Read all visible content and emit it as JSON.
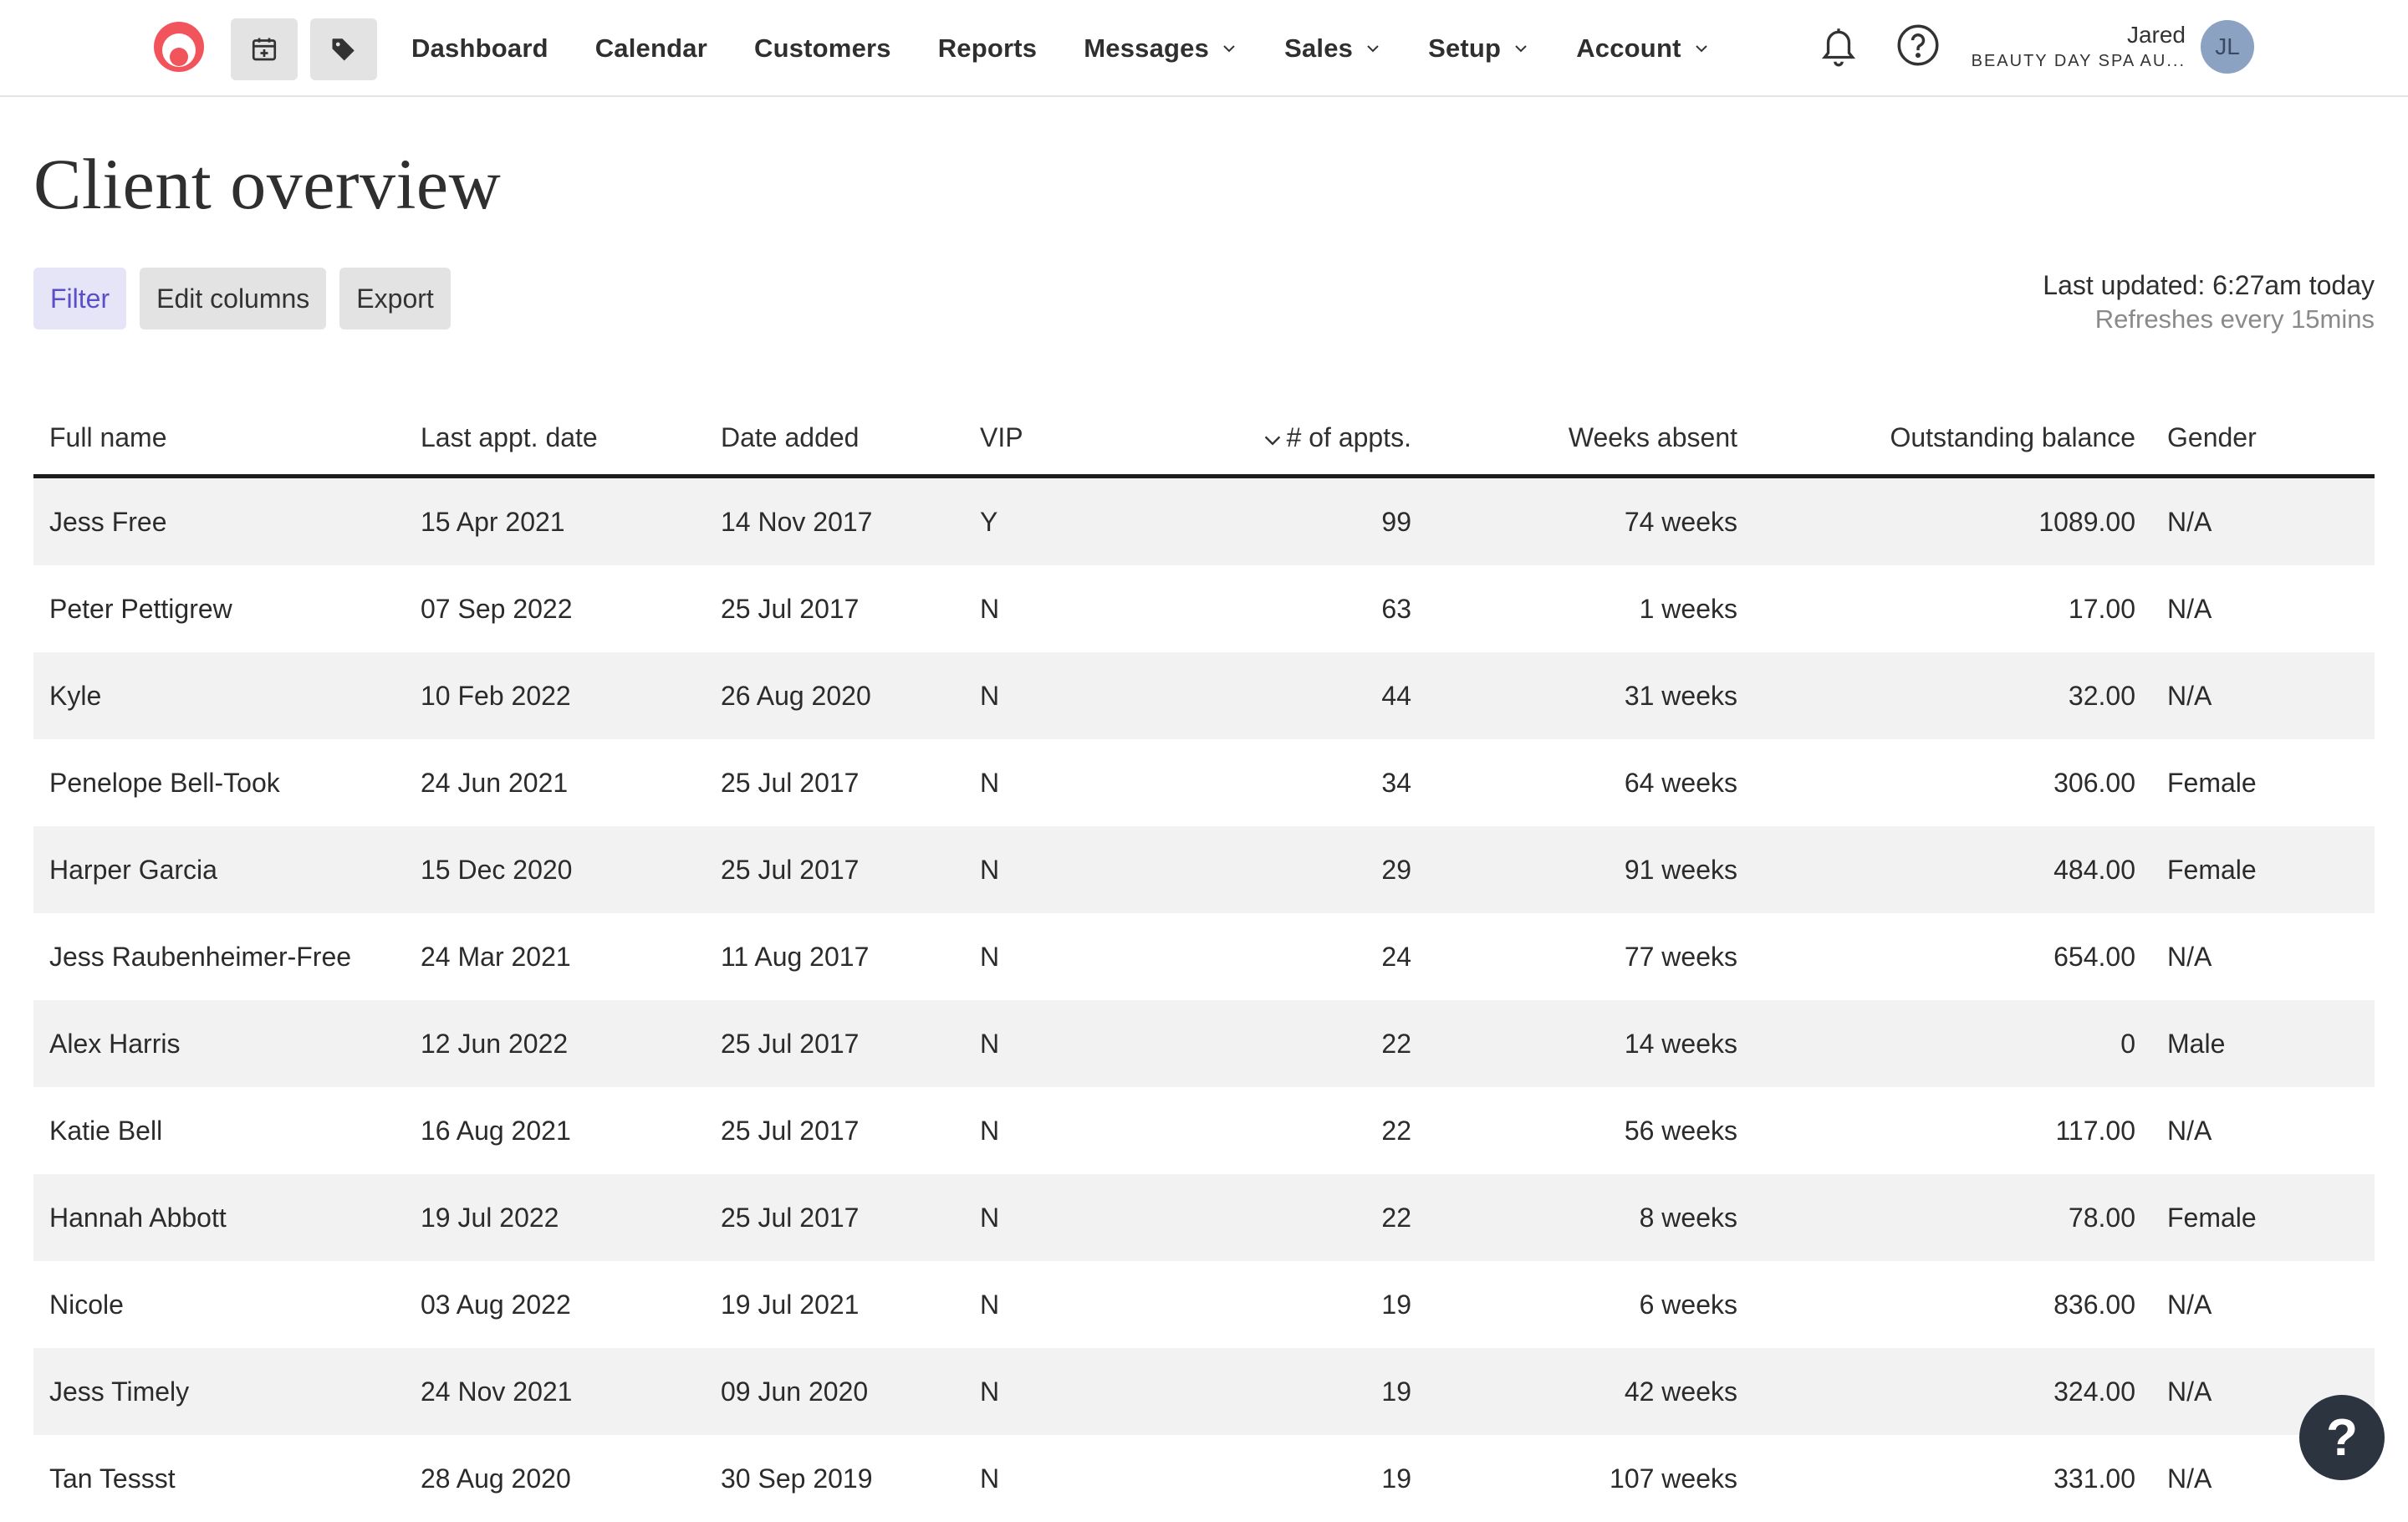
{
  "nav": {
    "links": [
      {
        "label": "Dashboard",
        "dropdown": false
      },
      {
        "label": "Calendar",
        "dropdown": false
      },
      {
        "label": "Customers",
        "dropdown": false
      },
      {
        "label": "Reports",
        "dropdown": false
      },
      {
        "label": "Messages",
        "dropdown": true
      },
      {
        "label": "Sales",
        "dropdown": true
      },
      {
        "label": "Setup",
        "dropdown": true
      },
      {
        "label": "Account",
        "dropdown": true
      }
    ],
    "user": {
      "name": "Jared",
      "business": "BEAUTY DAY SPA AU...",
      "initials": "JL"
    },
    "icons": [
      "calendar-plus-icon",
      "tag-icon",
      "bell-icon",
      "help-circle-icon"
    ],
    "brand_color": "#f2545b"
  },
  "page": {
    "title": "Client overview",
    "toolbar": {
      "filter": "Filter",
      "edit_columns": "Edit columns",
      "export": "Export"
    },
    "last_updated": "Last updated: 6:27am today",
    "refreshes": "Refreshes every 15mins"
  },
  "table": {
    "headers": {
      "name": "Full name",
      "last": "Last appt. date",
      "added": "Date added",
      "vip": "VIP",
      "appts": "# of appts.",
      "weeks": "Weeks absent",
      "balance": "Outstanding balance",
      "gender": "Gender"
    },
    "rows": [
      {
        "name": "Jess Free",
        "last": "15 Apr 2021",
        "added": "14 Nov 2017",
        "vip": "Y",
        "appts": "99",
        "weeks": "74 weeks",
        "balance": "1089.00",
        "gender": "N/A"
      },
      {
        "name": "Peter Pettigrew",
        "last": "07 Sep 2022",
        "added": "25 Jul 2017",
        "vip": "N",
        "appts": "63",
        "weeks": "1 weeks",
        "balance": "17.00",
        "gender": "N/A"
      },
      {
        "name": "Kyle",
        "last": "10 Feb 2022",
        "added": "26 Aug 2020",
        "vip": "N",
        "appts": "44",
        "weeks": "31 weeks",
        "balance": "32.00",
        "gender": "N/A"
      },
      {
        "name": "Penelope Bell-Took",
        "last": "24 Jun 2021",
        "added": "25 Jul 2017",
        "vip": "N",
        "appts": "34",
        "weeks": "64 weeks",
        "balance": "306.00",
        "gender": "Female"
      },
      {
        "name": "Harper Garcia",
        "last": "15 Dec 2020",
        "added": "25 Jul 2017",
        "vip": "N",
        "appts": "29",
        "weeks": "91 weeks",
        "balance": "484.00",
        "gender": "Female"
      },
      {
        "name": "Jess Raubenheimer-Free",
        "last": "24 Mar 2021",
        "added": "11 Aug 2017",
        "vip": "N",
        "appts": "24",
        "weeks": "77 weeks",
        "balance": "654.00",
        "gender": "N/A"
      },
      {
        "name": "Alex Harris",
        "last": "12 Jun 2022",
        "added": "25 Jul 2017",
        "vip": "N",
        "appts": "22",
        "weeks": "14 weeks",
        "balance": "0",
        "gender": "Male"
      },
      {
        "name": "Katie Bell",
        "last": "16 Aug 2021",
        "added": "25 Jul 2017",
        "vip": "N",
        "appts": "22",
        "weeks": "56 weeks",
        "balance": "117.00",
        "gender": "N/A"
      },
      {
        "name": "Hannah Abbott",
        "last": "19 Jul 2022",
        "added": "25 Jul 2017",
        "vip": "N",
        "appts": "22",
        "weeks": "8 weeks",
        "balance": "78.00",
        "gender": "Female"
      },
      {
        "name": "Nicole",
        "last": "03 Aug 2022",
        "added": "19 Jul 2021",
        "vip": "N",
        "appts": "19",
        "weeks": "6 weeks",
        "balance": "836.00",
        "gender": "N/A"
      },
      {
        "name": "Jess Timely",
        "last": "24 Nov 2021",
        "added": "09 Jun 2020",
        "vip": "N",
        "appts": "19",
        "weeks": "42 weeks",
        "balance": "324.00",
        "gender": "N/A"
      },
      {
        "name": "Tan Tessst",
        "last": "28 Aug 2020",
        "added": "30 Sep 2019",
        "vip": "N",
        "appts": "19",
        "weeks": "107 weeks",
        "balance": "331.00",
        "gender": "N/A"
      }
    ]
  },
  "fab": {
    "label": "?"
  }
}
